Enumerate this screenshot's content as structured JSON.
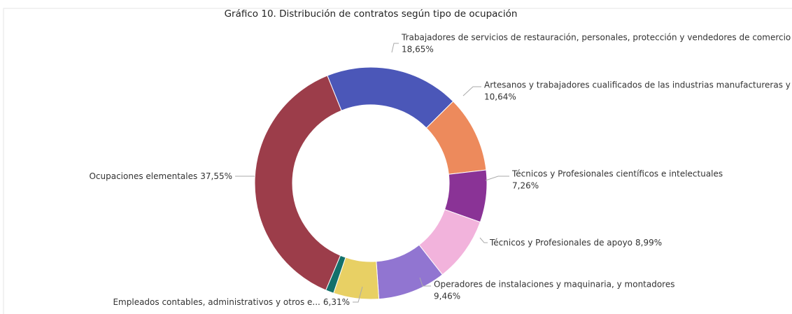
{
  "chart_data": {
    "type": "donut",
    "title": "Gráfico 10. Distribución de contratos según tipo de ocupación",
    "categories": [
      "Trabajadores de servicios de restauración, personales, protección y vendedores de comercio",
      "Artesanos y trabajadores cualificados de las industrias manufactureras y la c",
      "Técnicos y Profesionales científicos e intelectuales",
      "Técnicos y Profesionales de apoyo",
      "Operadores de instalaciones y maquinaria, y montadores",
      "Empleados contables, administrativos y otros e...",
      null,
      "Ocupaciones elementales"
    ],
    "values": [
      18.65,
      10.64,
      7.26,
      8.99,
      9.46,
      6.31,
      1.14,
      37.55
    ],
    "value_labels": [
      "18,65%",
      "10,64%",
      "7,26%",
      "8,99%",
      "9,46%",
      "6,31%",
      null,
      "37,55%"
    ],
    "colors": [
      "#4b57b8",
      "#ed8a5c",
      "#8a3396",
      "#f2b3dc",
      "#9175d1",
      "#e8d064",
      "#13706b",
      "#9c3d4a"
    ]
  }
}
